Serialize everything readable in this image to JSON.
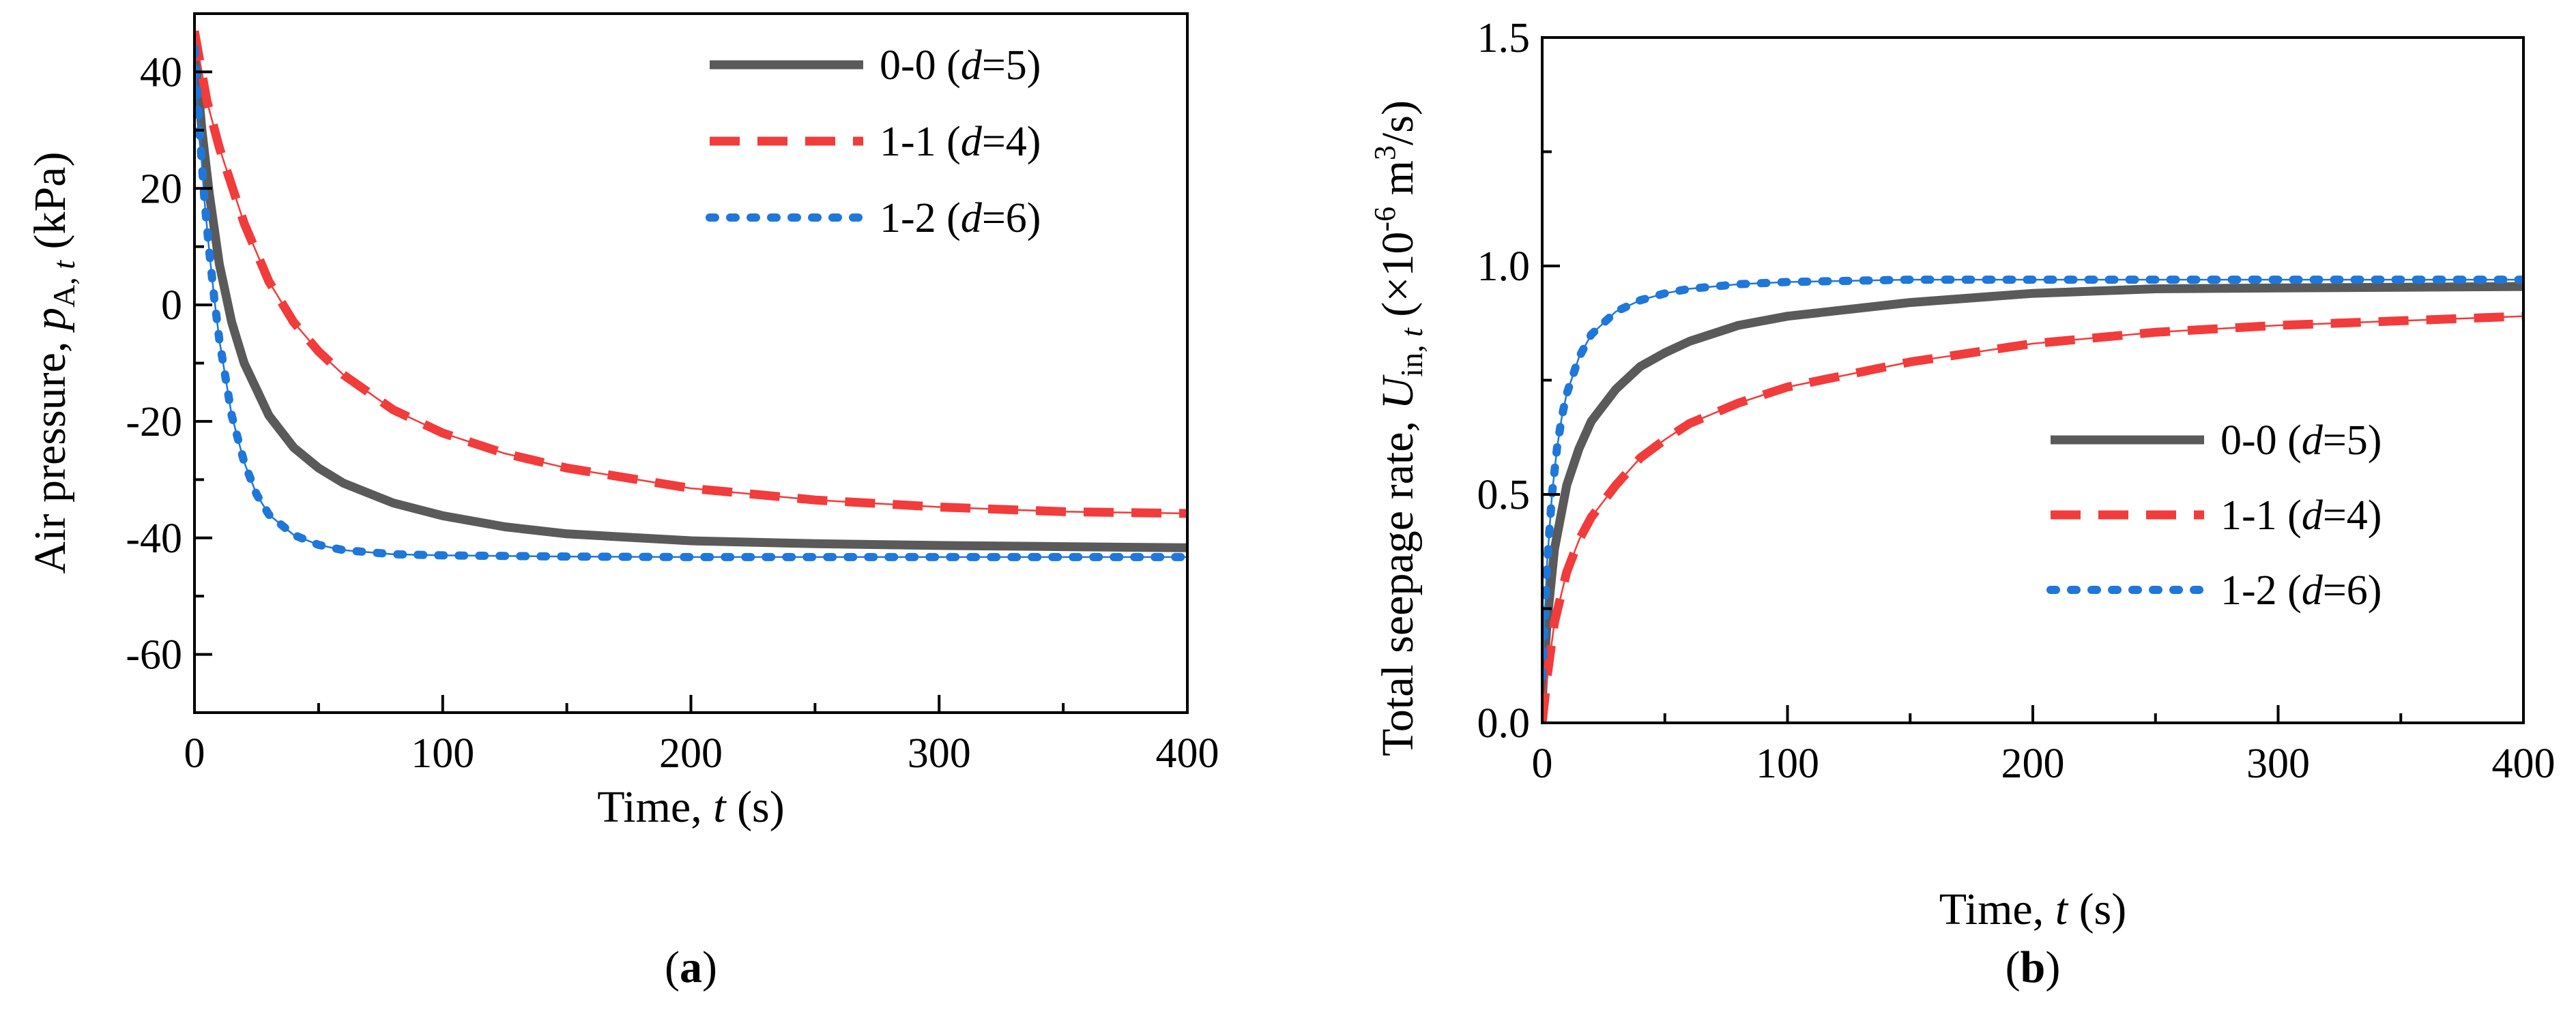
{
  "chart_data": [
    {
      "type": "line",
      "panel_label": {
        "open": "(",
        "letter": "a",
        "close": ")"
      },
      "xlabel": {
        "text": "Time, ",
        "symbol": "t",
        "unit": " (s)"
      },
      "ylabel": {
        "text": "Air pressure, ",
        "symbol": "p",
        "sub": "A, ",
        "sub_italic": "t",
        "unit": " (kPa)"
      },
      "xlim": [
        0,
        400
      ],
      "ylim": [
        -70,
        50
      ],
      "xticks": [
        0,
        100,
        200,
        300,
        400
      ],
      "yticks": [
        -60,
        -40,
        -20,
        0,
        20,
        40
      ],
      "ytick_labels": [
        "-60",
        "-40",
        "-20",
        "0",
        "20",
        "40"
      ],
      "legend_position": "top-right",
      "series": [
        {
          "name": "0-0",
          "param_open": " (",
          "param_symbol": "d",
          "param_value": "=5)",
          "color": "#5a5a5a",
          "style": "solid",
          "x": [
            0,
            3,
            6,
            10,
            15,
            20,
            30,
            40,
            50,
            60,
            80,
            100,
            125,
            150,
            200,
            250,
            300,
            350,
            400
          ],
          "y": [
            44,
            30,
            19,
            7,
            -3,
            -10,
            -19,
            -24.5,
            -28,
            -30.6,
            -34,
            -36.2,
            -38.1,
            -39.3,
            -40.5,
            -41,
            -41.3,
            -41.5,
            -41.7
          ]
        },
        {
          "name": "1-1",
          "param_open": " (",
          "param_symbol": "d",
          "param_value": "=4)",
          "color": "#f23b3b",
          "style": "dashed",
          "x": [
            0,
            5,
            10,
            20,
            30,
            40,
            50,
            60,
            80,
            100,
            125,
            150,
            200,
            250,
            300,
            350,
            400
          ],
          "y": [
            47,
            35,
            27,
            14,
            4,
            -3,
            -8,
            -12,
            -18,
            -22,
            -25.5,
            -28,
            -31.5,
            -33.5,
            -34.7,
            -35.5,
            -35.8
          ]
        },
        {
          "name": "1-2",
          "param_open": " (",
          "param_symbol": "d",
          "param_value": "=6)",
          "color": "#1f77d9",
          "style": "dotted",
          "x": [
            0,
            2,
            4,
            6,
            8,
            10,
            15,
            20,
            25,
            30,
            40,
            50,
            60,
            80,
            100,
            150,
            200,
            300,
            400
          ],
          "y": [
            44,
            30,
            18,
            9,
            1,
            -6,
            -19,
            -27,
            -32.5,
            -36,
            -39.5,
            -41.2,
            -42.1,
            -42.8,
            -43,
            -43.2,
            -43.3,
            -43.3,
            -43.3
          ]
        }
      ]
    },
    {
      "type": "line",
      "panel_label": {
        "open": "(",
        "letter": "b",
        "close": ")"
      },
      "xlabel": {
        "text": "Time, ",
        "symbol": "t",
        "unit": " (s)"
      },
      "ylabel": {
        "text": "Total seepage rate, ",
        "symbol": "U",
        "sub": "in, ",
        "sub_italic": "t",
        "unit_open": " (×10",
        "exp": "-6",
        "unit_mid": " m",
        "exp2": "3",
        "unit_close": "/s)"
      },
      "xlim": [
        0,
        400
      ],
      "ylim": [
        0,
        1.5
      ],
      "xticks": [
        0,
        100,
        200,
        300,
        400
      ],
      "yticks": [
        0.0,
        0.5,
        1.0,
        1.5
      ],
      "ytick_labels": [
        "0.0",
        "0.5",
        "1.0",
        "1.5"
      ],
      "legend_position": "center-right",
      "series": [
        {
          "name": "0-0",
          "param_open": " (",
          "param_symbol": "d",
          "param_value": "=5)",
          "color": "#5a5a5a",
          "style": "solid",
          "x": [
            0,
            2,
            5,
            10,
            15,
            20,
            30,
            40,
            50,
            60,
            80,
            100,
            150,
            200,
            250,
            300,
            400
          ],
          "y": [
            0.05,
            0.22,
            0.38,
            0.52,
            0.6,
            0.66,
            0.73,
            0.78,
            0.81,
            0.835,
            0.87,
            0.89,
            0.92,
            0.94,
            0.95,
            0.952,
            0.955
          ]
        },
        {
          "name": "1-1",
          "param_open": " (",
          "param_symbol": "d",
          "param_value": "=4)",
          "color": "#f23b3b",
          "style": "dashed",
          "x": [
            0,
            2,
            5,
            10,
            15,
            20,
            30,
            40,
            50,
            60,
            80,
            100,
            150,
            200,
            250,
            300,
            350,
            400
          ],
          "y": [
            0.0,
            0.1,
            0.22,
            0.33,
            0.4,
            0.45,
            0.52,
            0.58,
            0.62,
            0.655,
            0.7,
            0.735,
            0.79,
            0.83,
            0.855,
            0.87,
            0.88,
            0.89
          ]
        },
        {
          "name": "1-2",
          "param_open": " (",
          "param_symbol": "d",
          "param_value": "=6)",
          "color": "#1f77d9",
          "style": "dotted",
          "x": [
            0,
            2,
            4,
            6,
            8,
            10,
            15,
            20,
            30,
            40,
            50,
            60,
            80,
            100,
            150,
            200,
            300,
            400
          ],
          "y": [
            0.1,
            0.35,
            0.5,
            0.6,
            0.67,
            0.72,
            0.8,
            0.85,
            0.9,
            0.925,
            0.94,
            0.95,
            0.96,
            0.965,
            0.97,
            0.97,
            0.97,
            0.97
          ]
        }
      ]
    }
  ]
}
